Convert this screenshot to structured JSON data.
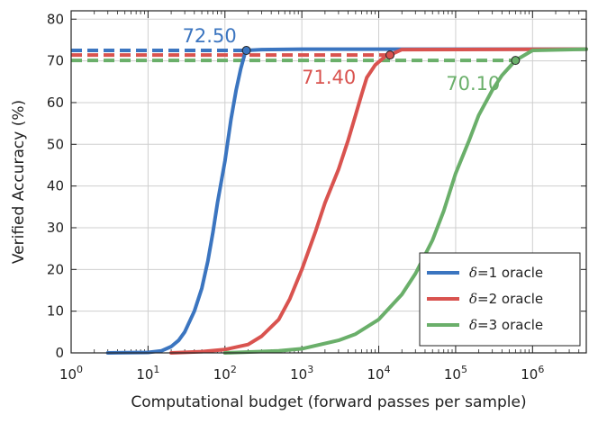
{
  "chart_data": {
    "type": "line",
    "title": "",
    "xlabel": "Computational budget (forward passes per sample)",
    "ylabel": "Verified Accuracy (%)",
    "xscale": "log",
    "xlim": [
      1,
      5000000
    ],
    "ylim": [
      0,
      82
    ],
    "grid": true,
    "legend_placement": "bottom-right",
    "x_ticks": [
      {
        "value": 1,
        "base": "10",
        "exp": "0"
      },
      {
        "value": 10,
        "base": "10",
        "exp": "1"
      },
      {
        "value": 100,
        "base": "10",
        "exp": "2"
      },
      {
        "value": 1000,
        "base": "10",
        "exp": "3"
      },
      {
        "value": 10000,
        "base": "10",
        "exp": "4"
      },
      {
        "value": 100000,
        "base": "10",
        "exp": "5"
      },
      {
        "value": 1000000,
        "base": "10",
        "exp": "6"
      }
    ],
    "y_ticks": [
      {
        "value": 0,
        "label": "0"
      },
      {
        "value": 10,
        "label": "10"
      },
      {
        "value": 20,
        "label": "20"
      },
      {
        "value": 30,
        "label": "30"
      },
      {
        "value": 40,
        "label": "40"
      },
      {
        "value": 50,
        "label": "50"
      },
      {
        "value": 60,
        "label": "60"
      },
      {
        "value": 70,
        "label": "70"
      },
      {
        "value": 80,
        "label": "80"
      }
    ],
    "series": [
      {
        "name": "δ=1 oracle",
        "delta_symbol": "δ",
        "legend_suffix": "=1 oracle",
        "color": "#3b75c0",
        "dashed_level": 72.5,
        "marker": {
          "x": 190,
          "y": 72.5
        },
        "annotation": {
          "text": "72.50",
          "x": 28,
          "y": 74.5
        },
        "points": [
          [
            3,
            0
          ],
          [
            10,
            0.1
          ],
          [
            15,
            0.5
          ],
          [
            20,
            1.5
          ],
          [
            25,
            3
          ],
          [
            30,
            5
          ],
          [
            40,
            10
          ],
          [
            50,
            15.5
          ],
          [
            60,
            22
          ],
          [
            70,
            29
          ],
          [
            80,
            36
          ],
          [
            100,
            46
          ],
          [
            120,
            56
          ],
          [
            140,
            63
          ],
          [
            160,
            68
          ],
          [
            180,
            71.5
          ],
          [
            190,
            72.5
          ],
          [
            300,
            72.7
          ],
          [
            1000,
            72.8
          ],
          [
            5000000,
            72.8
          ]
        ]
      },
      {
        "name": "δ=2 oracle",
        "delta_symbol": "δ",
        "legend_suffix": "=2 oracle",
        "color": "#d9534f",
        "dashed_level": 71.4,
        "marker": {
          "x": 14000,
          "y": 71.4
        },
        "annotation": {
          "text": "71.40",
          "x": 1000,
          "y": 64.5
        },
        "points": [
          [
            20,
            0
          ],
          [
            50,
            0.3
          ],
          [
            100,
            0.8
          ],
          [
            200,
            2
          ],
          [
            300,
            4
          ],
          [
            500,
            8
          ],
          [
            700,
            13
          ],
          [
            1000,
            20
          ],
          [
            1500,
            29
          ],
          [
            2000,
            36
          ],
          [
            3000,
            44
          ],
          [
            4000,
            51
          ],
          [
            5000,
            57
          ],
          [
            6000,
            62
          ],
          [
            7000,
            66
          ],
          [
            9000,
            69
          ],
          [
            12000,
            71
          ],
          [
            14000,
            71.4
          ],
          [
            20000,
            72.7
          ],
          [
            5000000,
            72.8
          ]
        ]
      },
      {
        "name": "δ=3 oracle",
        "delta_symbol": "δ",
        "legend_suffix": "=3 oracle",
        "color": "#6aaf6a",
        "dashed_level": 70.1,
        "marker": {
          "x": 600000,
          "y": 70.1
        },
        "annotation": {
          "text": "70.10",
          "x": 75000,
          "y": 63
        },
        "points": [
          [
            100,
            0
          ],
          [
            500,
            0.5
          ],
          [
            1000,
            1
          ],
          [
            3000,
            3
          ],
          [
            5000,
            4.5
          ],
          [
            10000,
            8
          ],
          [
            20000,
            14
          ],
          [
            30000,
            19
          ],
          [
            50000,
            27
          ],
          [
            70000,
            34
          ],
          [
            100000,
            43
          ],
          [
            150000,
            51
          ],
          [
            200000,
            57
          ],
          [
            300000,
            63
          ],
          [
            400000,
            66.5
          ],
          [
            500000,
            68.5
          ],
          [
            600000,
            70.1
          ],
          [
            1000000,
            72.5
          ],
          [
            5000000,
            72.8
          ]
        ]
      }
    ]
  }
}
